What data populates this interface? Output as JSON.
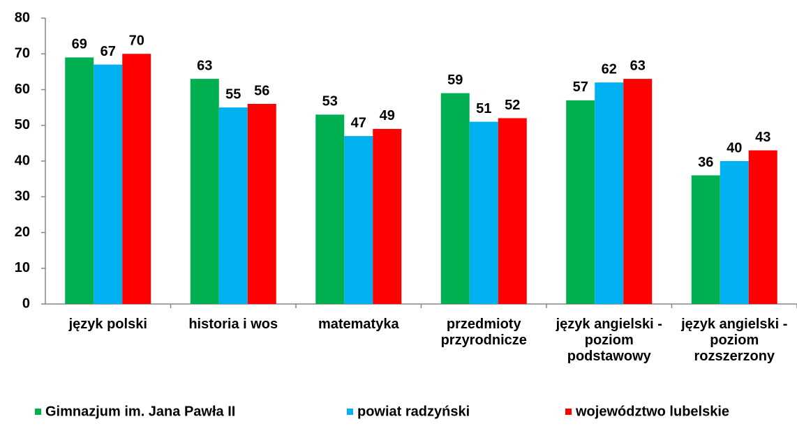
{
  "chart_data": {
    "type": "bar",
    "categories": [
      "język polski",
      "historia i wos",
      "matematyka",
      "przedmioty przyrodnicze",
      "język angielski - poziom podstawowy",
      "język angielski - poziom rozszerzony"
    ],
    "series": [
      {
        "name": "Gimnazjum im. Jana Pawła II",
        "color": "#00b050",
        "values": [
          69,
          63,
          53,
          59,
          57,
          36
        ]
      },
      {
        "name": "powiat radzyński",
        "color": "#00b0f0",
        "values": [
          67,
          55,
          47,
          51,
          62,
          40
        ]
      },
      {
        "name": "województwo lubelskie",
        "color": "#ff0000",
        "values": [
          70,
          56,
          49,
          52,
          63,
          43
        ]
      }
    ],
    "ylim": [
      0,
      80
    ],
    "yticks": [
      0,
      10,
      20,
      30,
      40,
      50,
      60,
      70,
      80
    ],
    "grid": false,
    "legend": "bottom"
  }
}
